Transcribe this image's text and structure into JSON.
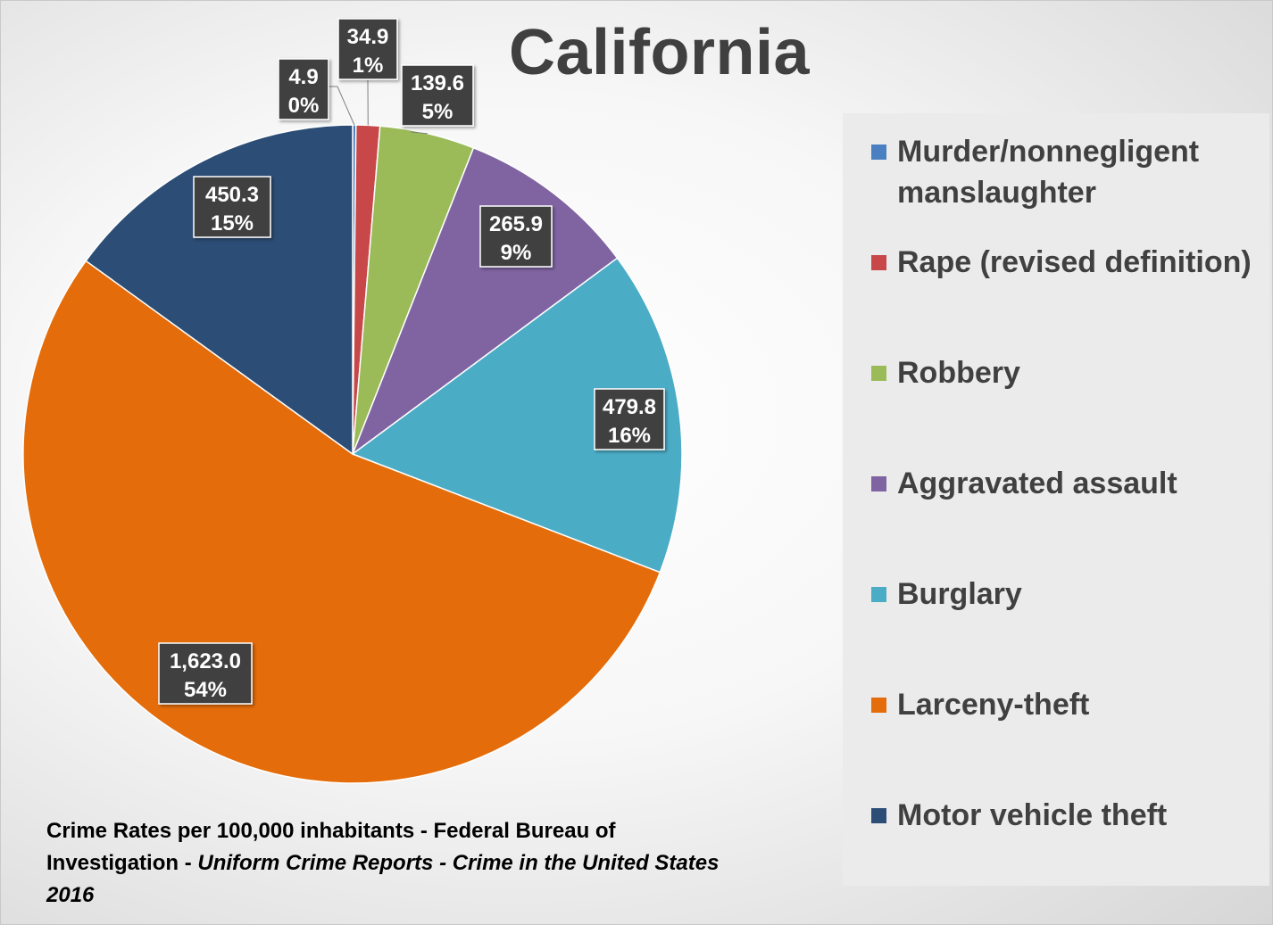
{
  "chart_data": {
    "type": "pie",
    "title": "California",
    "categories": [
      "Murder/nonnegligent manslaughter",
      "Rape (revised definition)",
      "Robbery",
      "Aggravated assault",
      "Burglary",
      "Larceny-theft",
      "Motor vehicle theft"
    ],
    "values": [
      4.9,
      34.9,
      139.6,
      265.9,
      479.8,
      1623.0,
      450.3
    ],
    "value_labels": [
      "4.9",
      "34.9",
      "139.6",
      "265.9",
      "479.8",
      "1,623.0",
      "450.3"
    ],
    "percent_labels": [
      "0%",
      "1%",
      "5%",
      "9%",
      "16%",
      "54%",
      "15%"
    ],
    "colors": [
      "#4a7fc1",
      "#c8484a",
      "#9bbb59",
      "#8064a2",
      "#4bacc6",
      "#e46c0a",
      "#2c4d75"
    ],
    "legend_position": "right"
  },
  "source": {
    "line1": "Crime Rates per 100,000 inhabitants - Federal Bureau of",
    "line2_plain": "Investigation - ",
    "line2_italic": "Uniform Crime Reports - Crime in the United States",
    "line3_italic": "2016"
  }
}
